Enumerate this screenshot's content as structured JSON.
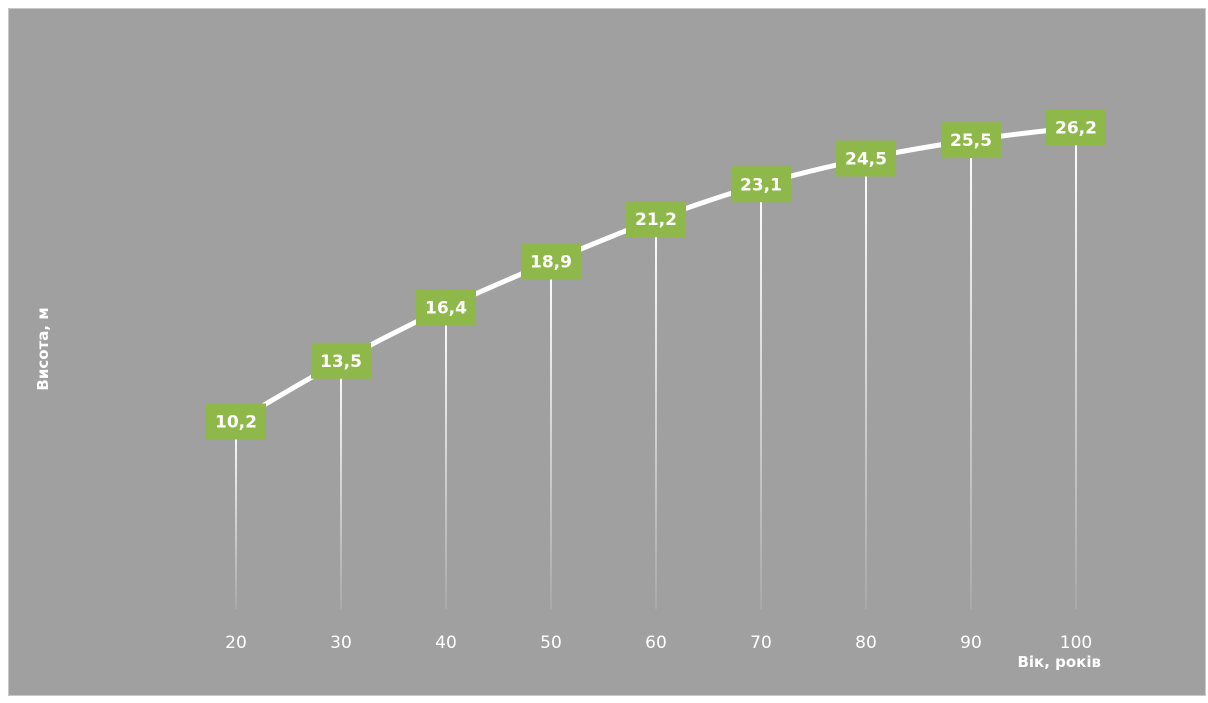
{
  "chart_data": {
    "type": "line",
    "title": "",
    "xlabel": "Вік, років",
    "ylabel": "Висота, м",
    "x": [
      20,
      30,
      40,
      50,
      60,
      70,
      80,
      90,
      100
    ],
    "categories": [
      "20",
      "30",
      "40",
      "50",
      "60",
      "70",
      "80",
      "90",
      "100"
    ],
    "series": [
      {
        "values": [
          10.2,
          13.5,
          16.4,
          18.9,
          21.2,
          23.1,
          24.5,
          25.5,
          26.2
        ],
        "labels": [
          "10,2",
          "13,5",
          "16,4",
          "18,9",
          "21,2",
          "23,1",
          "24,5",
          "25,5",
          "26,2"
        ]
      }
    ],
    "ylim": [
      0,
      31
    ],
    "grid": false,
    "drop_lines": true,
    "legend": "none",
    "colors": {
      "background": "#a0a0a0",
      "line": "#ffffff",
      "label_box": "#8fb84a",
      "label_text": "#ffffff"
    }
  }
}
